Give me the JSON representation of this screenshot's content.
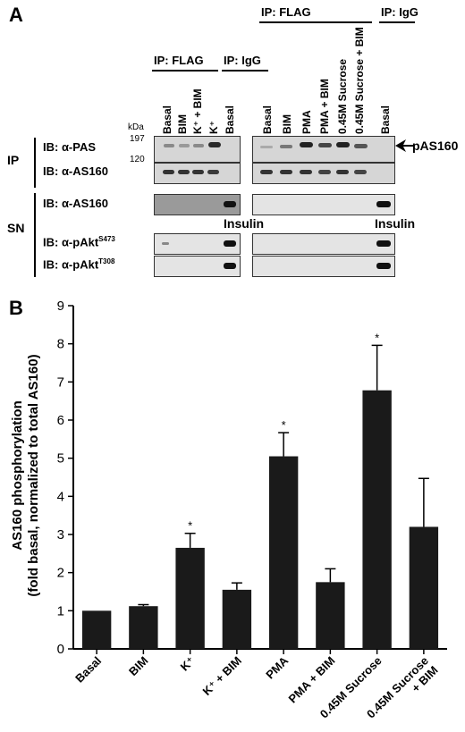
{
  "panel_a": {
    "letter": "A",
    "headers": {
      "ip_flag_left": "IP: FLAG",
      "ip_igg_left": "IP: IgG",
      "ip_flag_right": "IP: FLAG",
      "ip_igg_right": "IP: IgG"
    },
    "lanes_left": [
      "Basal",
      "BIM",
      "K⁺ + BIM",
      "K⁺",
      "Basal"
    ],
    "lanes_right": [
      "Basal",
      "BIM",
      "PMA",
      "PMA + BIM",
      "0.45M Sucrose",
      "0.45M Sucrose + BIM",
      "Basal"
    ],
    "kda_label": "kDa",
    "kda_197": "197",
    "kda_120": "120",
    "group_ip": "IP",
    "group_sn": "SN",
    "rows": {
      "pas": "IB: α-PAS",
      "as160_ip": "IB: α-AS160",
      "as160_sn": "IB: α-AS160",
      "pakt473": "IB: α-pAkt",
      "pakt473_sup": "S473",
      "pakt308": "IB: α-pAkt",
      "pakt308_sup": "T308"
    },
    "insulin_left": "Insulin",
    "insulin_right": "Insulin",
    "arrow_label": "pAS160"
  },
  "panel_b": {
    "letter": "B"
  },
  "chart_data": {
    "type": "bar",
    "title": "",
    "xlabel": "",
    "ylabel": "AS160 phosphorylation (fold basal, normalized to total AS160)",
    "ylabel_line1": "AS160 phosphorylation",
    "ylabel_line2": "(fold basal, normalized to total AS160)",
    "ylim": [
      0,
      9
    ],
    "yticks": [
      0,
      1,
      2,
      3,
      4,
      5,
      6,
      7,
      8,
      9
    ],
    "categories": [
      "Basal",
      "BIM",
      "K⁺",
      "K⁺ + BIM",
      "PMA",
      "PMA + BIM",
      "0.45M Sucrose",
      "0.45M Sucrose + BIM"
    ],
    "values": [
      1.0,
      1.12,
      2.65,
      1.55,
      5.05,
      1.75,
      6.78,
      3.2
    ],
    "errors": [
      0.0,
      0.04,
      0.38,
      0.18,
      0.62,
      0.35,
      1.18,
      1.27
    ],
    "significant": [
      false,
      false,
      true,
      false,
      true,
      false,
      true,
      false
    ],
    "significance_marker": "*",
    "bar_color": "#1a1a1a"
  }
}
